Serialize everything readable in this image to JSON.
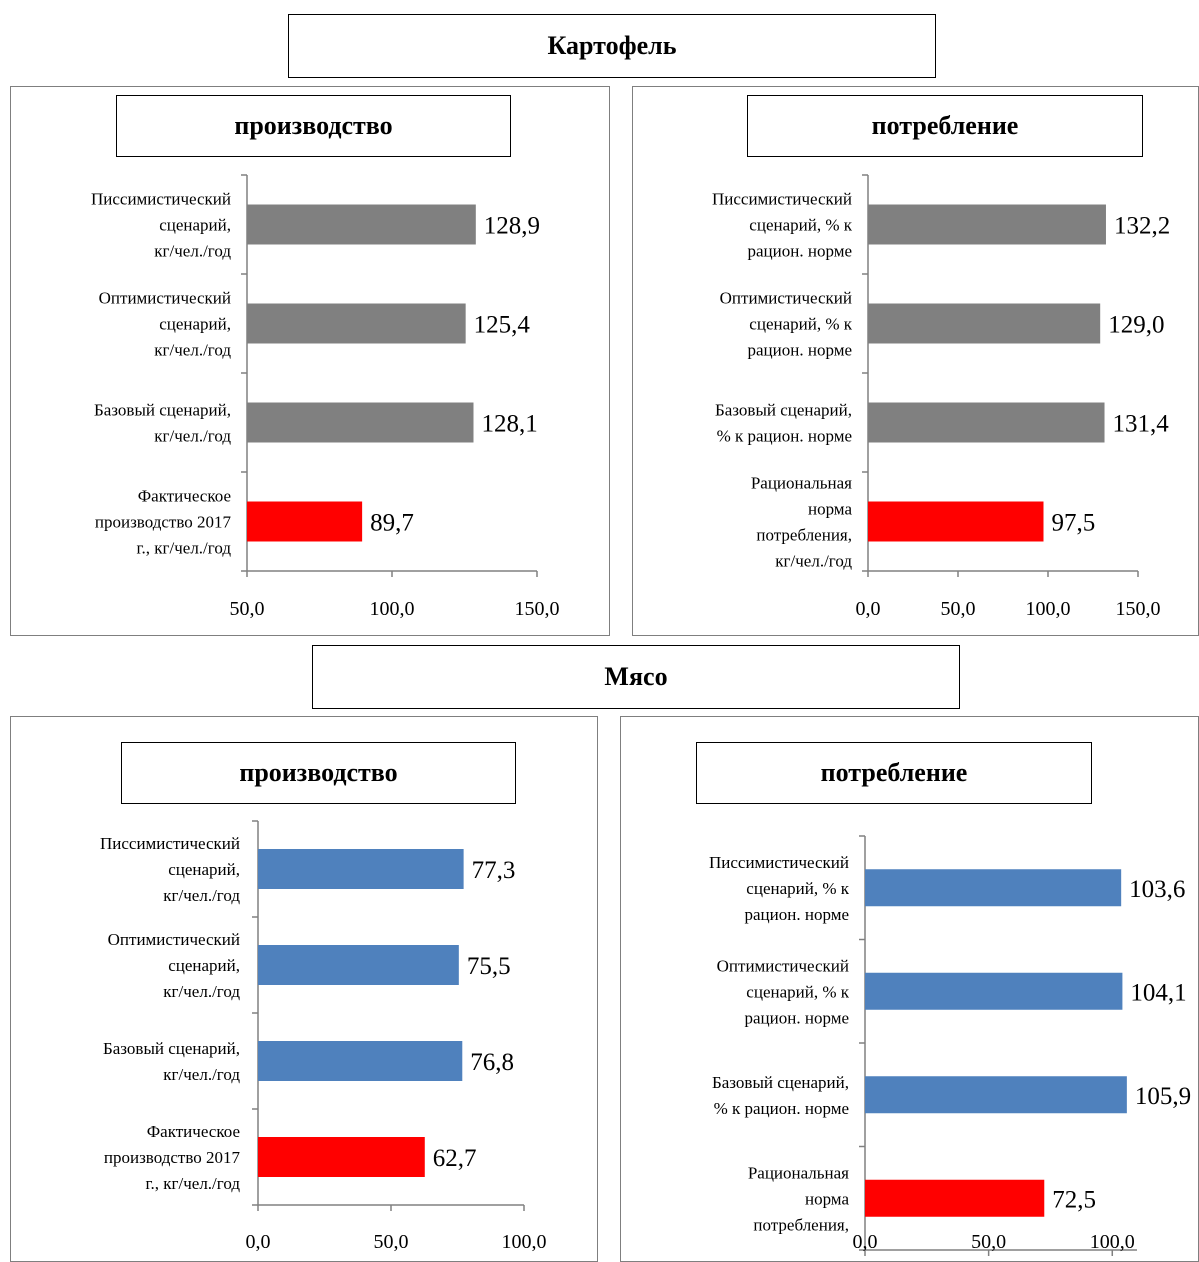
{
  "sections": {
    "potato": "Картофель",
    "meat": "Мясо"
  },
  "chart_data": [
    {
      "type": "bar",
      "orientation": "horizontal",
      "group": "Картофель",
      "title": "производство",
      "categories": [
        [
          "Писсимистический",
          "сценарий,",
          "кг/чел./год"
        ],
        [
          "Оптимистический",
          "сценарий,",
          "кг/чел./год"
        ],
        [
          "Базовый сценарий,",
          "кг/чел./год"
        ],
        [
          "Фактическое",
          "производство 2017",
          "г., кг/чел./год"
        ]
      ],
      "values": [
        128.9,
        125.4,
        128.1,
        89.7
      ],
      "value_labels": [
        "128,9",
        "125,4",
        "128,1",
        "89,7"
      ],
      "colors": [
        "#808080",
        "#808080",
        "#808080",
        "#ff0000"
      ],
      "xlim": [
        50,
        150
      ],
      "ticks": [
        50,
        100,
        150
      ],
      "tick_labels": [
        "50,0",
        "100,0",
        "150,0"
      ]
    },
    {
      "type": "bar",
      "orientation": "horizontal",
      "group": "Картофель",
      "title": "потребление",
      "categories": [
        [
          "Писсимистический",
          "сценарий, % к",
          "рацион. норме"
        ],
        [
          "Оптимистический",
          "сценарий, % к",
          "рацион. норме"
        ],
        [
          "Базовый сценарий,",
          "% к рацион. норме"
        ],
        [
          "Рациональная",
          "норма",
          "потребления,",
          "кг/чел./год"
        ]
      ],
      "values": [
        132.2,
        129.0,
        131.4,
        97.5
      ],
      "value_labels": [
        "132,2",
        "129,0",
        "131,4",
        "97,5"
      ],
      "colors": [
        "#808080",
        "#808080",
        "#808080",
        "#ff0000"
      ],
      "xlim": [
        0,
        150
      ],
      "ticks": [
        0,
        50,
        100,
        150
      ],
      "tick_labels": [
        "0,0",
        "50,0",
        "100,0",
        "150,0"
      ]
    },
    {
      "type": "bar",
      "orientation": "horizontal",
      "group": "Мясо",
      "title": "производство",
      "categories": [
        [
          "Писсимистический",
          "сценарий,",
          "кг/чел./год"
        ],
        [
          "Оптимистический",
          "сценарий,",
          "кг/чел./год"
        ],
        [
          "Базовый сценарий,",
          "кг/чел./год"
        ],
        [
          "Фактическое",
          "производство 2017",
          "г., кг/чел./год"
        ]
      ],
      "values": [
        77.3,
        75.5,
        76.8,
        62.7
      ],
      "value_labels": [
        "77,3",
        "75,5",
        "76,8",
        "62,7"
      ],
      "colors": [
        "#4f81bd",
        "#4f81bd",
        "#4f81bd",
        "#ff0000"
      ],
      "xlim": [
        0,
        100
      ],
      "ticks": [
        0,
        50,
        100
      ],
      "tick_labels": [
        "0,0",
        "50,0",
        "100,0"
      ]
    },
    {
      "type": "bar",
      "orientation": "horizontal",
      "group": "Мясо",
      "title": "потребление",
      "categories": [
        [
          "Писсимистический",
          "сценарий, % к",
          "рацион. норме"
        ],
        [
          "Оптимистический",
          "сценарий, % к",
          "рацион. норме"
        ],
        [
          "Базовый сценарий,",
          "% к рацион. норме"
        ],
        [
          "Рациональная",
          "норма",
          "потребления,"
        ]
      ],
      "values": [
        103.6,
        104.1,
        105.9,
        72.5
      ],
      "value_labels": [
        "103,6",
        "104,1",
        "105,9",
        "72,5"
      ],
      "colors": [
        "#4f81bd",
        "#4f81bd",
        "#4f81bd",
        "#ff0000"
      ],
      "xlim": [
        0,
        110
      ],
      "ticks": [
        0,
        50,
        100
      ],
      "tick_labels": [
        "0,0",
        "50,0",
        "100,0"
      ]
    }
  ]
}
